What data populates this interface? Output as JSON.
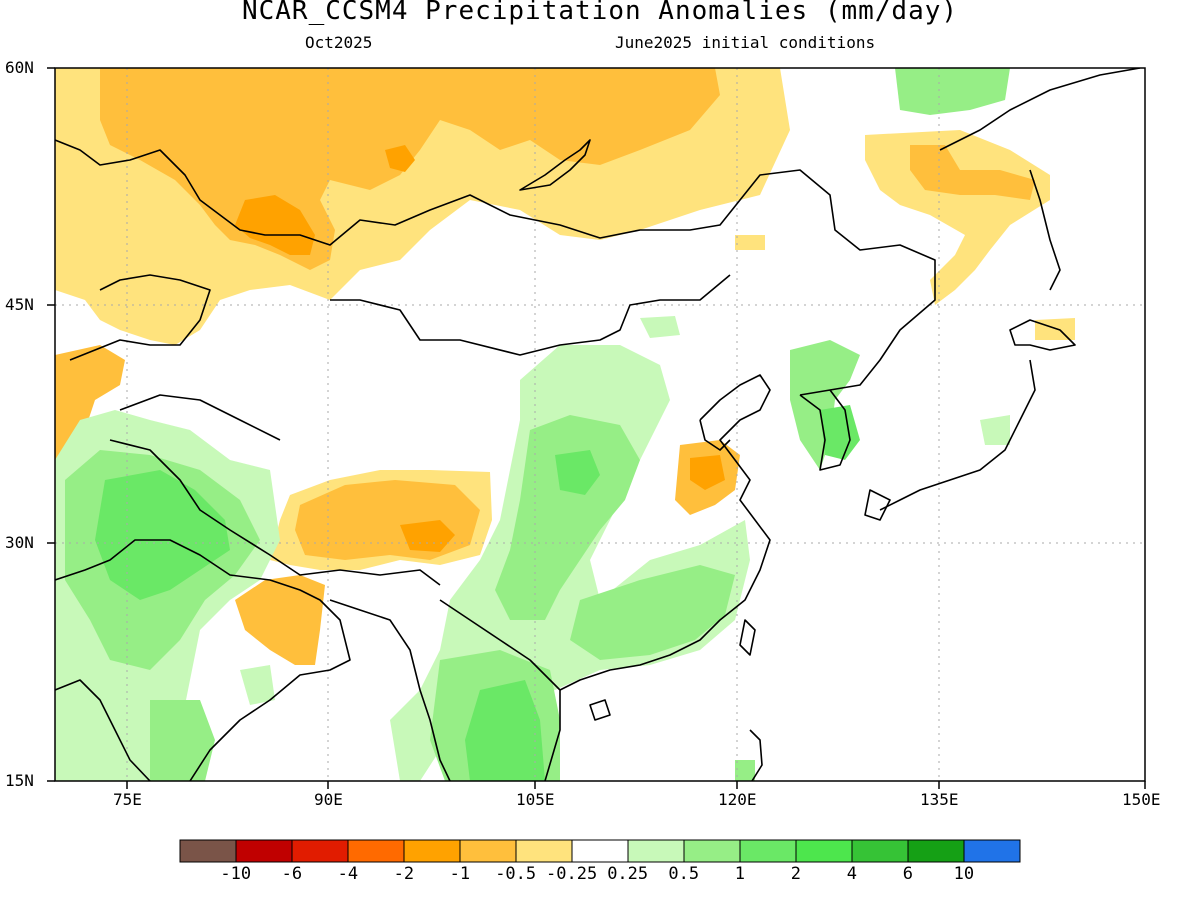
{
  "title": "NCAR_CCSM4 Precipitation Anomalies (mm/day)",
  "subtitle_left": "Oct2025",
  "subtitle_right": "June2025 initial conditions",
  "lat_labels": [
    "60N",
    "45N",
    "30N",
    "15N"
  ],
  "lon_labels": [
    "75E",
    "90E",
    "105E",
    "120E",
    "135E",
    "150E"
  ],
  "colorbar": {
    "colors": [
      "#7a5448",
      "#c00000",
      "#e11c00",
      "#ff6a00",
      "#ffa200",
      "#ffbf3c",
      "#ffe37d",
      "#ffffff",
      "#c8f9b9",
      "#96ee86",
      "#6ae866",
      "#4de64d",
      "#36c336",
      "#15a015",
      "#2073e8"
    ],
    "labels": [
      "-10",
      "-6",
      "-4",
      "-2",
      "-1",
      "-0.5",
      "-0.25",
      "0.25",
      "0.5",
      "1",
      "2",
      "4",
      "6",
      "10"
    ]
  },
  "legend_colors": {
    "slight_dry": "#ffe37d",
    "dry": "#ffbf3c",
    "very_dry": "#ffa200",
    "slight_wet": "#c8f9b9",
    "wet": "#96ee86",
    "very_wet": "#6ae866",
    "coast": "#000000",
    "grid": "#aaaaaa"
  }
}
